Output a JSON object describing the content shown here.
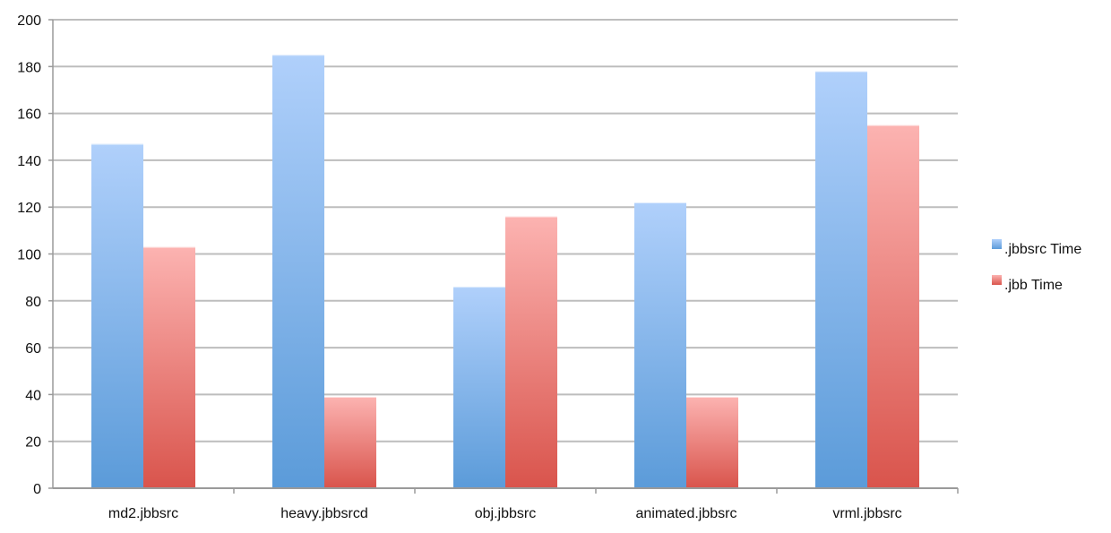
{
  "chart_data": {
    "type": "bar",
    "categories": [
      "md2.jbbsrc",
      "heavy.jbbsrcd",
      "obj.jbbsrc",
      "animated.jbbsrc",
      "vrml.jbbsrc"
    ],
    "series": [
      {
        "name": ".jbbsrc Time",
        "values": [
          147,
          185,
          86,
          122,
          178
        ],
        "color_top": "#b0d0fb",
        "color_bottom": "#5b9bd9"
      },
      {
        "name": ".jbb Time",
        "values": [
          103,
          39,
          116,
          39,
          155
        ],
        "color_top": "#fcb3b1",
        "color_bottom": "#d9544c"
      }
    ],
    "title": "",
    "xlabel": "",
    "ylabel": "",
    "ylim": [
      0,
      200
    ],
    "yticks": [
      0,
      20,
      40,
      60,
      80,
      100,
      120,
      140,
      160,
      180,
      200
    ],
    "grid": true,
    "legend": "right",
    "colors": {
      "grid": "#bdbdbd",
      "axis": "#9a9a9a"
    }
  }
}
